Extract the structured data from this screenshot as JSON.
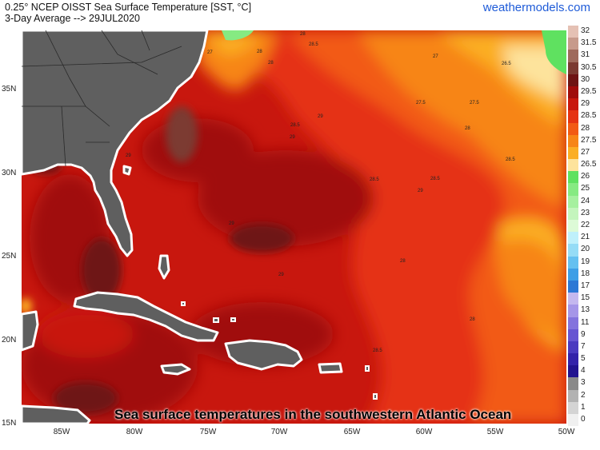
{
  "header": {
    "title_line1": "0.25° NCEP OISST Sea Surface Temperature [SST, °C]",
    "title_line2": "3-Day Average --> 29JUL2020",
    "brand": "weathermodels.com"
  },
  "map": {
    "lat_labels": [
      "35N",
      "30N",
      "25N",
      "20N",
      "15N"
    ],
    "lon_labels": [
      "85W",
      "80W",
      "75W",
      "70W",
      "65W",
      "60W",
      "55W",
      "50W"
    ],
    "contour_labels": [
      "28",
      "28.5",
      "27",
      "28",
      "28",
      "27",
      "26.5",
      "28.5",
      "29",
      "27.5",
      "27.5",
      "28",
      "29",
      "28.5",
      "28.5",
      "28.5",
      "29",
      "29",
      "29",
      "28",
      "28",
      "28.5",
      "29"
    ],
    "land_color": "#5f5f5f",
    "caption": "Sea surface temperatures in the southwestern Atlantic Ocean"
  },
  "legend": {
    "levels": [
      {
        "label": "32",
        "color": "#e5c1b4"
      },
      {
        "label": "31.5",
        "color": "#c79a8b"
      },
      {
        "label": "31",
        "color": "#9f6a5c"
      },
      {
        "label": "30.5",
        "color": "#7b3a31"
      },
      {
        "label": "30",
        "color": "#6e1414"
      },
      {
        "label": "29.5",
        "color": "#a00c0c"
      },
      {
        "label": "29",
        "color": "#c8170e"
      },
      {
        "label": "28.5",
        "color": "#e53312"
      },
      {
        "label": "28",
        "color": "#f25a14"
      },
      {
        "label": "27.5",
        "color": "#f78517"
      },
      {
        "label": "27",
        "color": "#fbae24"
      },
      {
        "label": "26.5",
        "color": "#fde39c"
      },
      {
        "label": "26",
        "color": "#5fe160"
      },
      {
        "label": "25",
        "color": "#86ea82"
      },
      {
        "label": "24",
        "color": "#a6f09f"
      },
      {
        "label": "23",
        "color": "#c4f5bd"
      },
      {
        "label": "22",
        "color": "#ddfad7"
      },
      {
        "label": "21",
        "color": "#bff0fb"
      },
      {
        "label": "20",
        "color": "#95dcf6"
      },
      {
        "label": "19",
        "color": "#64c0f0"
      },
      {
        "label": "18",
        "color": "#3d9ee6"
      },
      {
        "label": "17",
        "color": "#2c78d5"
      },
      {
        "label": "15",
        "color": "#c4b8ef"
      },
      {
        "label": "13",
        "color": "#a596e8"
      },
      {
        "label": "11",
        "color": "#8373dd"
      },
      {
        "label": "9",
        "color": "#6655d2"
      },
      {
        "label": "7",
        "color": "#4a3ac0"
      },
      {
        "label": "5",
        "color": "#3322aa"
      },
      {
        "label": "4",
        "color": "#22138f"
      },
      {
        "label": "3",
        "color": "#8a8a8a"
      },
      {
        "label": "2",
        "color": "#b2b2b2"
      },
      {
        "label": "1",
        "color": "#d4d4d4"
      },
      {
        "label": "0",
        "color": "#f0f0f0"
      }
    ]
  }
}
